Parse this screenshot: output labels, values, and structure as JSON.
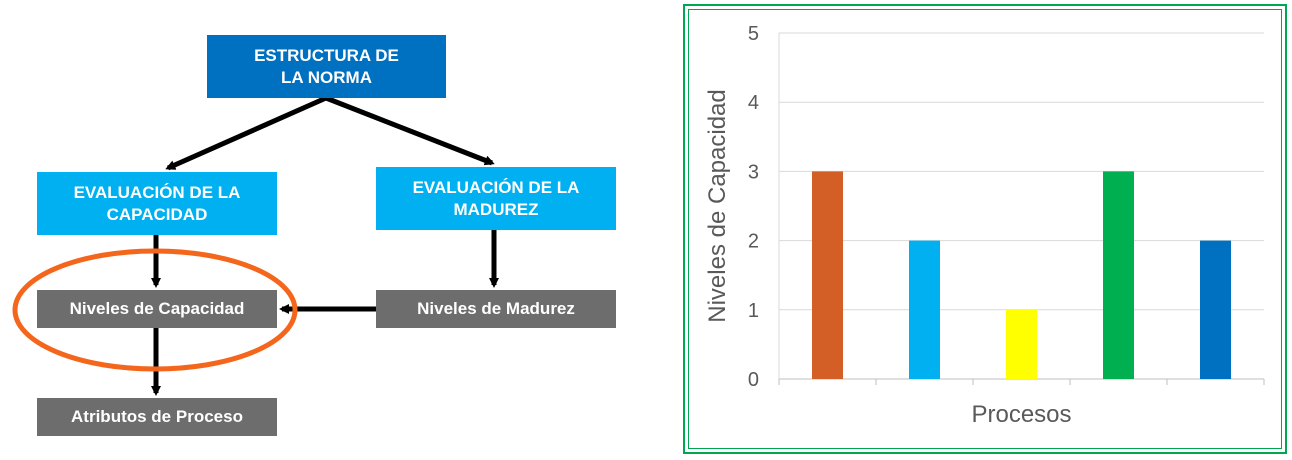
{
  "diagram": {
    "top": "ESTRUCTURA DE\nLA NORMA",
    "capacity_eval": "EVALUACIÓN DE LA\nCAPACIDAD",
    "maturity_eval": "EVALUACIÓN DE LA\nMADUREZ",
    "capacity_levels": "Niveles de Capacidad",
    "maturity_levels": "Niveles de Madurez",
    "process_attributes": "Atributos de Proceso",
    "colors": {
      "top": "#0070c0",
      "eval": "#00b0f0",
      "levels": "#6d6d6d",
      "highlight_ellipse": "#f4661b"
    }
  },
  "chart_data": {
    "type": "bar",
    "xlabel": "Procesos",
    "ylabel": "Niveles de Capacidad",
    "ylim": [
      0,
      5
    ],
    "yticks": [
      0,
      1,
      2,
      3,
      4,
      5
    ],
    "grid": true,
    "values": [
      3,
      2,
      1,
      3,
      2
    ],
    "colors": [
      "#d35f27",
      "#00b0f0",
      "#ffff00",
      "#00b050",
      "#0070c0"
    ],
    "frame_color": "#00a651"
  }
}
